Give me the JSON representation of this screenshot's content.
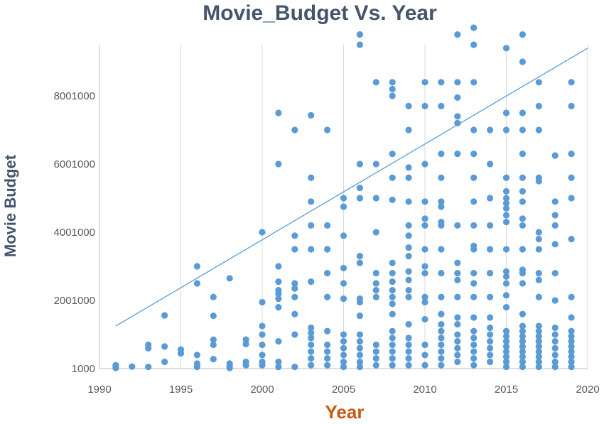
{
  "chart_data": {
    "type": "scatter",
    "title": "Movie_Budget Vs. Year",
    "xlabel": "Year",
    "ylabel": "Movie Budget",
    "xlim": [
      1990,
      2020
    ],
    "ylim": [
      1000,
      9500000
    ],
    "x_ticks": [
      "1990",
      "1995",
      "2000",
      "2005",
      "2010",
      "2015",
      "2020"
    ],
    "y_ticks": [
      "1000",
      "2001000",
      "4001000",
      "6001000",
      "8001000"
    ],
    "x_tick_values": [
      1990,
      1995,
      2000,
      2005,
      2010,
      2015,
      2020
    ],
    "y_tick_values": [
      1000,
      2001000,
      4001000,
      6001000,
      8001000
    ],
    "grid": "vertical",
    "legend": "none",
    "point_color": "#5b9bd5",
    "trendline": {
      "x": [
        1991,
        2020
      ],
      "y": [
        1250000,
        9400000
      ],
      "color": "#5b9bd5"
    },
    "points": [
      [
        1991,
        100000
      ],
      [
        1991,
        50000
      ],
      [
        1991,
        20000
      ],
      [
        1992,
        60000
      ],
      [
        1993,
        700000
      ],
      [
        1993,
        600000
      ],
      [
        1993,
        50000
      ],
      [
        1994,
        1560000
      ],
      [
        1994,
        650000
      ],
      [
        1994,
        200000
      ],
      [
        1995,
        560000
      ],
      [
        1995,
        450000
      ],
      [
        1996,
        3000000
      ],
      [
        1996,
        2500000
      ],
      [
        1996,
        400000
      ],
      [
        1996,
        150000
      ],
      [
        1996,
        50000
      ],
      [
        1997,
        2100000
      ],
      [
        1997,
        1550000
      ],
      [
        1997,
        850000
      ],
      [
        1997,
        700000
      ],
      [
        1997,
        280000
      ],
      [
        1998,
        2650000
      ],
      [
        1998,
        150000
      ],
      [
        1998,
        80000
      ],
      [
        1998,
        20000
      ],
      [
        1999,
        850000
      ],
      [
        1999,
        720000
      ],
      [
        1999,
        200000
      ],
      [
        1999,
        100000
      ],
      [
        2000,
        4000000
      ],
      [
        2000,
        1950000
      ],
      [
        2000,
        1250000
      ],
      [
        2000,
        1000000
      ],
      [
        2000,
        700000
      ],
      [
        2000,
        400000
      ],
      [
        2000,
        200000
      ],
      [
        2000,
        100000
      ],
      [
        2001,
        7500000
      ],
      [
        2001,
        6000000
      ],
      [
        2001,
        3000000
      ],
      [
        2001,
        2550000
      ],
      [
        2001,
        2300000
      ],
      [
        2001,
        2200000
      ],
      [
        2001,
        2050000
      ],
      [
        2001,
        1800000
      ],
      [
        2001,
        800000
      ],
      [
        2001,
        200000
      ],
      [
        2001,
        50000
      ],
      [
        2002,
        7000000
      ],
      [
        2002,
        3900000
      ],
      [
        2002,
        3500000
      ],
      [
        2002,
        2500000
      ],
      [
        2002,
        2350000
      ],
      [
        2002,
        2100000
      ],
      [
        2002,
        1600000
      ],
      [
        2002,
        1000000
      ],
      [
        2002,
        50000
      ],
      [
        2003,
        7430000
      ],
      [
        2003,
        5600000
      ],
      [
        2003,
        4900000
      ],
      [
        2003,
        4200000
      ],
      [
        2003,
        3500000
      ],
      [
        2003,
        2550000
      ],
      [
        2003,
        1200000
      ],
      [
        2003,
        1050000
      ],
      [
        2003,
        900000
      ],
      [
        2003,
        700000
      ],
      [
        2003,
        500000
      ],
      [
        2003,
        300000
      ],
      [
        2003,
        100000
      ],
      [
        2004,
        7000000
      ],
      [
        2004,
        4200000
      ],
      [
        2004,
        3500000
      ],
      [
        2004,
        2800000
      ],
      [
        2004,
        2100000
      ],
      [
        2004,
        1100000
      ],
      [
        2004,
        700000
      ],
      [
        2004,
        500000
      ],
      [
        2004,
        300000
      ],
      [
        2004,
        100000
      ],
      [
        2005,
        5000000
      ],
      [
        2005,
        4750000
      ],
      [
        2005,
        3900000
      ],
      [
        2005,
        2950000
      ],
      [
        2005,
        2500000
      ],
      [
        2005,
        2050000
      ],
      [
        2005,
        1000000
      ],
      [
        2005,
        800000
      ],
      [
        2005,
        600000
      ],
      [
        2005,
        400000
      ],
      [
        2005,
        200000
      ],
      [
        2005,
        50000
      ],
      [
        2006,
        9800000
      ],
      [
        2006,
        9500000
      ],
      [
        2006,
        6000000
      ],
      [
        2006,
        5300000
      ],
      [
        2006,
        5000000
      ],
      [
        2006,
        3300000
      ],
      [
        2006,
        3100000
      ],
      [
        2006,
        2050000
      ],
      [
        2006,
        1950000
      ],
      [
        2006,
        1550000
      ],
      [
        2006,
        1000000
      ],
      [
        2006,
        800000
      ],
      [
        2006,
        600000
      ],
      [
        2006,
        400000
      ],
      [
        2006,
        200000
      ],
      [
        2006,
        50000
      ],
      [
        2007,
        8400000
      ],
      [
        2007,
        6000000
      ],
      [
        2007,
        5000000
      ],
      [
        2007,
        4000000
      ],
      [
        2007,
        2800000
      ],
      [
        2007,
        2500000
      ],
      [
        2007,
        2300000
      ],
      [
        2007,
        2100000
      ],
      [
        2007,
        700000
      ],
      [
        2007,
        500000
      ],
      [
        2007,
        300000
      ],
      [
        2007,
        100000
      ],
      [
        2008,
        8400000
      ],
      [
        2008,
        8200000
      ],
      [
        2008,
        8000000
      ],
      [
        2008,
        6300000
      ],
      [
        2008,
        5600000
      ],
      [
        2008,
        4950000
      ],
      [
        2008,
        3100000
      ],
      [
        2008,
        2800000
      ],
      [
        2008,
        2550000
      ],
      [
        2008,
        2300000
      ],
      [
        2008,
        2100000
      ],
      [
        2008,
        1900000
      ],
      [
        2008,
        1600000
      ],
      [
        2008,
        1100000
      ],
      [
        2008,
        900000
      ],
      [
        2008,
        700000
      ],
      [
        2008,
        500000
      ],
      [
        2008,
        300000
      ],
      [
        2008,
        100000
      ],
      [
        2009,
        7700000
      ],
      [
        2009,
        7000000
      ],
      [
        2009,
        5900000
      ],
      [
        2009,
        5600000
      ],
      [
        2009,
        4900000
      ],
      [
        2009,
        4200000
      ],
      [
        2009,
        3900000
      ],
      [
        2009,
        3550000
      ],
      [
        2009,
        3300000
      ],
      [
        2009,
        2850000
      ],
      [
        2009,
        2600000
      ],
      [
        2009,
        2300000
      ],
      [
        2009,
        2100000
      ],
      [
        2009,
        1300000
      ],
      [
        2009,
        900000
      ],
      [
        2009,
        700000
      ],
      [
        2009,
        500000
      ],
      [
        2009,
        300000
      ],
      [
        2009,
        100000
      ],
      [
        2010,
        8400000
      ],
      [
        2010,
        7700000
      ],
      [
        2010,
        6000000
      ],
      [
        2010,
        4900000
      ],
      [
        2010,
        4400000
      ],
      [
        2010,
        4200000
      ],
      [
        2010,
        3500000
      ],
      [
        2010,
        3000000
      ],
      [
        2010,
        2800000
      ],
      [
        2010,
        2100000
      ],
      [
        2010,
        1950000
      ],
      [
        2010,
        1450000
      ],
      [
        2010,
        700000
      ],
      [
        2010,
        400000
      ],
      [
        2010,
        100000
      ],
      [
        2011,
        8400000
      ],
      [
        2011,
        7700000
      ],
      [
        2011,
        6300000
      ],
      [
        2011,
        5600000
      ],
      [
        2011,
        4900000
      ],
      [
        2011,
        4750000
      ],
      [
        2011,
        4300000
      ],
      [
        2011,
        4200000
      ],
      [
        2011,
        3500000
      ],
      [
        2011,
        2800000
      ],
      [
        2011,
        2100000
      ],
      [
        2011,
        1600000
      ],
      [
        2011,
        1300000
      ],
      [
        2011,
        1100000
      ],
      [
        2011,
        900000
      ],
      [
        2011,
        700000
      ],
      [
        2011,
        500000
      ],
      [
        2011,
        300000
      ],
      [
        2011,
        100000
      ],
      [
        2012,
        9800000
      ],
      [
        2012,
        8400000
      ],
      [
        2012,
        7950000
      ],
      [
        2012,
        7400000
      ],
      [
        2012,
        7200000
      ],
      [
        2012,
        6300000
      ],
      [
        2012,
        4200000
      ],
      [
        2012,
        3100000
      ],
      [
        2012,
        2800000
      ],
      [
        2012,
        2600000
      ],
      [
        2012,
        2100000
      ],
      [
        2012,
        1500000
      ],
      [
        2012,
        1300000
      ],
      [
        2012,
        1000000
      ],
      [
        2012,
        800000
      ],
      [
        2012,
        600000
      ],
      [
        2012,
        400000
      ],
      [
        2012,
        200000
      ],
      [
        2013,
        10000000
      ],
      [
        2013,
        9500000
      ],
      [
        2013,
        8400000
      ],
      [
        2013,
        7000000
      ],
      [
        2013,
        6300000
      ],
      [
        2013,
        5600000
      ],
      [
        2013,
        4900000
      ],
      [
        2013,
        4200000
      ],
      [
        2013,
        3600000
      ],
      [
        2013,
        3500000
      ],
      [
        2013,
        2800000
      ],
      [
        2013,
        2500000
      ],
      [
        2013,
        2100000
      ],
      [
        2013,
        1500000
      ],
      [
        2013,
        1100000
      ],
      [
        2013,
        900000
      ],
      [
        2013,
        700000
      ],
      [
        2013,
        500000
      ],
      [
        2013,
        300000
      ],
      [
        2013,
        100000
      ],
      [
        2014,
        7000000
      ],
      [
        2014,
        6000000
      ],
      [
        2014,
        5000000
      ],
      [
        2014,
        4200000
      ],
      [
        2014,
        3500000
      ],
      [
        2014,
        2800000
      ],
      [
        2014,
        2100000
      ],
      [
        2014,
        1500000
      ],
      [
        2014,
        1200000
      ],
      [
        2014,
        1000000
      ],
      [
        2014,
        800000
      ],
      [
        2014,
        600000
      ],
      [
        2014,
        400000
      ],
      [
        2014,
        200000
      ],
      [
        2015,
        9400000
      ],
      [
        2015,
        7500000
      ],
      [
        2015,
        7000000
      ],
      [
        2015,
        5600000
      ],
      [
        2015,
        5200000
      ],
      [
        2015,
        5000000
      ],
      [
        2015,
        4850000
      ],
      [
        2015,
        4700000
      ],
      [
        2015,
        4500000
      ],
      [
        2015,
        4300000
      ],
      [
        2015,
        3500000
      ],
      [
        2015,
        2850000
      ],
      [
        2015,
        2700000
      ],
      [
        2015,
        2500000
      ],
      [
        2015,
        2150000
      ],
      [
        2015,
        1800000
      ],
      [
        2015,
        1100000
      ],
      [
        2015,
        950000
      ],
      [
        2015,
        800000
      ],
      [
        2015,
        650000
      ],
      [
        2015,
        500000
      ],
      [
        2015,
        350000
      ],
      [
        2015,
        200000
      ],
      [
        2015,
        50000
      ],
      [
        2016,
        9800000
      ],
      [
        2016,
        9000000
      ],
      [
        2016,
        7500000
      ],
      [
        2016,
        7000000
      ],
      [
        2016,
        6300000
      ],
      [
        2016,
        5600000
      ],
      [
        2016,
        5200000
      ],
      [
        2016,
        4900000
      ],
      [
        2016,
        4400000
      ],
      [
        2016,
        4200000
      ],
      [
        2016,
        3500000
      ],
      [
        2016,
        2900000
      ],
      [
        2016,
        2800000
      ],
      [
        2016,
        2500000
      ],
      [
        2016,
        1600000
      ],
      [
        2016,
        1250000
      ],
      [
        2016,
        1100000
      ],
      [
        2016,
        950000
      ],
      [
        2016,
        800000
      ],
      [
        2016,
        650000
      ],
      [
        2016,
        500000
      ],
      [
        2016,
        350000
      ],
      [
        2016,
        200000
      ],
      [
        2016,
        50000
      ],
      [
        2017,
        8400000
      ],
      [
        2017,
        7700000
      ],
      [
        2017,
        7000000
      ],
      [
        2017,
        5600000
      ],
      [
        2017,
        5500000
      ],
      [
        2017,
        4000000
      ],
      [
        2017,
        3800000
      ],
      [
        2017,
        3500000
      ],
      [
        2017,
        2800000
      ],
      [
        2017,
        2600000
      ],
      [
        2017,
        2100000
      ],
      [
        2017,
        1250000
      ],
      [
        2017,
        1100000
      ],
      [
        2017,
        950000
      ],
      [
        2017,
        800000
      ],
      [
        2017,
        650000
      ],
      [
        2017,
        500000
      ],
      [
        2017,
        350000
      ],
      [
        2017,
        200000
      ],
      [
        2017,
        50000
      ],
      [
        2018,
        6250000
      ],
      [
        2018,
        4900000
      ],
      [
        2018,
        4500000
      ],
      [
        2018,
        4200000
      ],
      [
        2018,
        3650000
      ],
      [
        2018,
        2800000
      ],
      [
        2018,
        2000000
      ],
      [
        2018,
        1200000
      ],
      [
        2018,
        1000000
      ],
      [
        2018,
        800000
      ],
      [
        2018,
        600000
      ],
      [
        2018,
        400000
      ],
      [
        2018,
        200000
      ],
      [
        2018,
        50000
      ],
      [
        2019,
        8400000
      ],
      [
        2019,
        7700000
      ],
      [
        2019,
        6300000
      ],
      [
        2019,
        5600000
      ],
      [
        2019,
        5000000
      ],
      [
        2019,
        3800000
      ],
      [
        2019,
        2100000
      ],
      [
        2019,
        1500000
      ],
      [
        2019,
        1100000
      ],
      [
        2019,
        950000
      ],
      [
        2019,
        800000
      ],
      [
        2019,
        650000
      ],
      [
        2019,
        500000
      ],
      [
        2019,
        350000
      ],
      [
        2019,
        200000
      ],
      [
        2019,
        50000
      ]
    ]
  }
}
